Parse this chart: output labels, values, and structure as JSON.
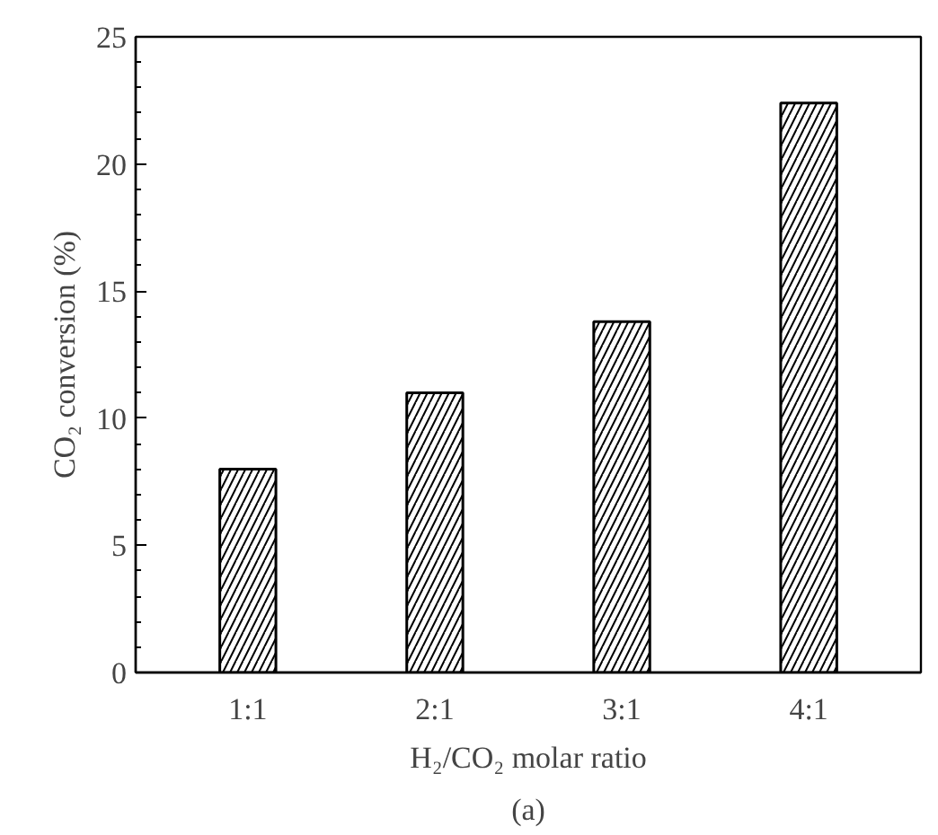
{
  "chart_data": {
    "type": "bar",
    "categories": [
      "1:1",
      "2:1",
      "3:1",
      "4:1"
    ],
    "values": [
      8,
      11,
      13.8,
      22.4
    ],
    "color": "#ffffff",
    "xlabel": "H₂/CO₂ molar ratio",
    "ylabel": "CO₂ conversion (%)",
    "ylim": [
      0,
      25
    ],
    "yticks": [
      0,
      5,
      10,
      15,
      20,
      25
    ],
    "grid": false,
    "annotations": [
      "(a)"
    ]
  }
}
